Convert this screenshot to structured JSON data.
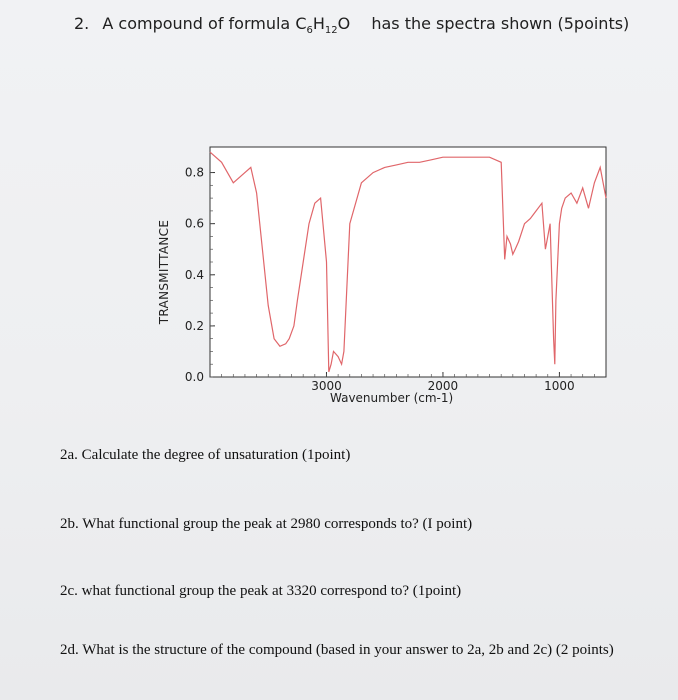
{
  "question": {
    "number": "2.",
    "text_prefix": "A compound of formula C",
    "sub1": "6",
    "h": "H",
    "sub2": "12",
    "o": "O",
    "points": "has the spectra shown (5points)"
  },
  "chart_data": {
    "type": "line",
    "ylabel": "TRANSMITTANCE",
    "xlabel": "Wavenumber (cm-1)",
    "x_ticks": [
      "3000",
      "2000",
      "1000"
    ],
    "y_ticks": [
      "0.8",
      "0.6",
      "0.4",
      "0.2",
      "0.0"
    ],
    "xlim": [
      4000,
      600
    ],
    "ylim": [
      0,
      0.9
    ],
    "x": [
      4000,
      3900,
      3800,
      3700,
      3650,
      3600,
      3550,
      3500,
      3450,
      3400,
      3350,
      3320,
      3280,
      3250,
      3200,
      3150,
      3100,
      3050,
      3000,
      2980,
      2960,
      2940,
      2900,
      2870,
      2850,
      2800,
      2700,
      2600,
      2500,
      2400,
      2300,
      2200,
      2100,
      2000,
      1900,
      1800,
      1700,
      1600,
      1500,
      1470,
      1450,
      1420,
      1400,
      1380,
      1350,
      1300,
      1250,
      1200,
      1150,
      1120,
      1100,
      1080,
      1050,
      1040,
      1030,
      1000,
      980,
      950,
      900,
      850,
      800,
      750,
      700,
      650,
      600
    ],
    "y": [
      0.88,
      0.84,
      0.76,
      0.8,
      0.82,
      0.72,
      0.5,
      0.28,
      0.15,
      0.12,
      0.13,
      0.15,
      0.2,
      0.3,
      0.45,
      0.6,
      0.68,
      0.7,
      0.45,
      0.02,
      0.05,
      0.1,
      0.08,
      0.05,
      0.1,
      0.6,
      0.76,
      0.8,
      0.82,
      0.83,
      0.84,
      0.84,
      0.85,
      0.86,
      0.86,
      0.86,
      0.86,
      0.86,
      0.84,
      0.46,
      0.55,
      0.52,
      0.48,
      0.5,
      0.53,
      0.6,
      0.62,
      0.65,
      0.68,
      0.5,
      0.55,
      0.6,
      0.15,
      0.05,
      0.3,
      0.6,
      0.66,
      0.7,
      0.72,
      0.68,
      0.74,
      0.66,
      0.76,
      0.82,
      0.7
    ],
    "grid": false,
    "line_color": "#e0666a"
  },
  "questions": {
    "q2a": "2a. Calculate the degree of unsaturation (1point)",
    "q2b": "2b. What functional group the peak at 2980 corresponds to? (I point)",
    "q2c": "2c. what functional group the peak at 3320 correspond to? (1point)",
    "q2d": "2d. What is the structure of the compound (based in your answer to 2a, 2b and 2c) (2 points)"
  }
}
